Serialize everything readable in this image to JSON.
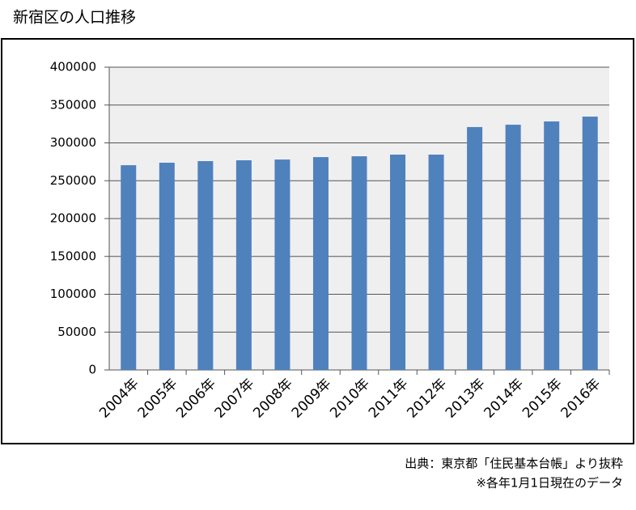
{
  "chart_data": {
    "type": "bar",
    "title": "新宿区の人口推移",
    "categories": [
      "2004年",
      "2005年",
      "2006年",
      "2007年",
      "2008年",
      "2009年",
      "2010年",
      "2011年",
      "2012年",
      "2013年",
      "2014年",
      "2015年",
      "2016年"
    ],
    "values": [
      270500,
      273800,
      275900,
      277000,
      278000,
      281200,
      282300,
      284500,
      284500,
      320900,
      324000,
      328300,
      334700
    ],
    "color": "#4f81bd",
    "ylim": [
      0,
      400000
    ],
    "yticks": [
      0,
      50000,
      100000,
      150000,
      200000,
      250000,
      300000,
      350000,
      400000
    ],
    "grid": true,
    "notes": [
      "出典：東京都「住民基本台帳」より抜粋",
      "※各年1月1日現在のデータ"
    ]
  }
}
